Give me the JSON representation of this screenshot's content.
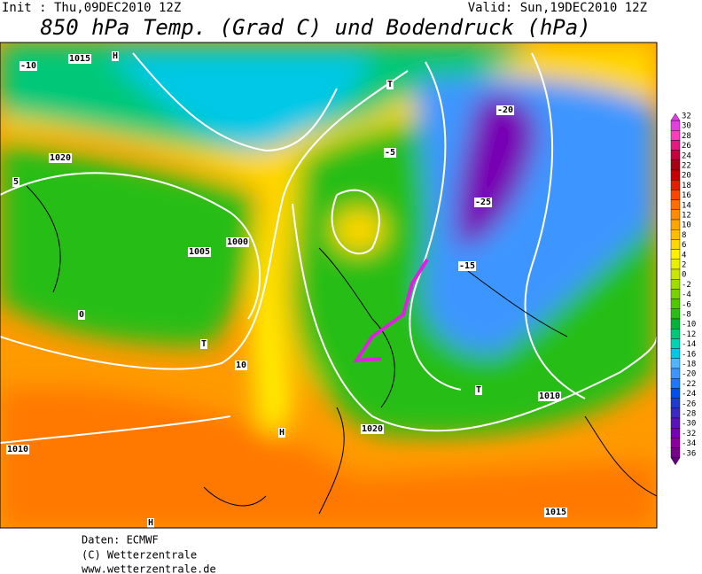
{
  "header": {
    "init": "Init : Thu,09DEC2010 12Z",
    "valid": "Valid: Sun,19DEC2010 12Z",
    "title": "850 hPa Temp. (Grad C) und Bodendruck (hPa)"
  },
  "legend": {
    "labels": [
      "32",
      "30",
      "28",
      "26",
      "24",
      "22",
      "20",
      "18",
      "16",
      "14",
      "12",
      "10",
      "8",
      "6",
      "4",
      "2",
      "0",
      "-2",
      "-4",
      "-6",
      "-8",
      "-10",
      "-12",
      "-14",
      "-16",
      "-18",
      "-20",
      "-22",
      "-24",
      "-26",
      "-28",
      "-30",
      "-32",
      "-34",
      "-36"
    ],
    "colors": [
      "#e040e0",
      "#ff3cbe",
      "#e6197d",
      "#c8003c",
      "#aa0014",
      "#c80000",
      "#e61e00",
      "#ff4600",
      "#ff6e00",
      "#ff8c00",
      "#ffa500",
      "#ffbe00",
      "#ffd700",
      "#fff000",
      "#e6f000",
      "#c8e600",
      "#a0dc00",
      "#78d200",
      "#50c800",
      "#28be14",
      "#00b43c",
      "#00c878",
      "#00d2b4",
      "#00c8e6",
      "#50b4ff",
      "#3c96ff",
      "#1e78ff",
      "#0050f0",
      "#1e3cd2",
      "#3c28c8",
      "#5a14be",
      "#7800b4",
      "#8c00a0",
      "#78008c",
      "#64007d"
    ]
  },
  "map": {
    "labels": [
      "H",
      "H",
      "H",
      "T",
      "T",
      "T",
      "1015",
      "1020",
      "1010",
      "1005",
      "1000",
      "1020",
      "1015",
      "1010",
      "-10",
      "-20",
      "-25",
      "-15",
      "10",
      "5",
      "0",
      "-5"
    ]
  },
  "footer": {
    "source": "Daten: ECMWF",
    "copyright": "(C) Wetterzentrale",
    "url": "www.wetterzentrale.de"
  }
}
